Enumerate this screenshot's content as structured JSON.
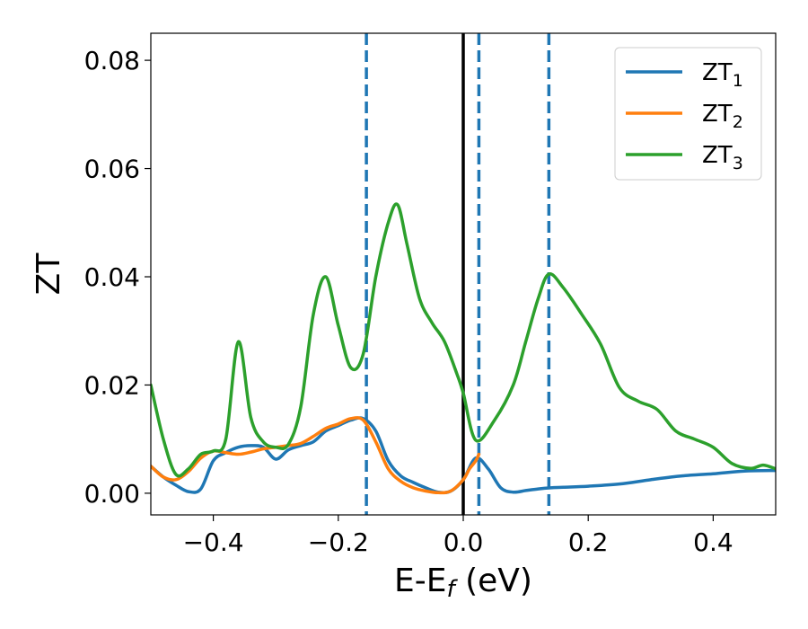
{
  "chart_data": {
    "type": "line",
    "xlabel": "E-E",
    "xlabel_sub": "f",
    "xlabel_unit": " (eV)",
    "ylabel": "ZT",
    "xlim": [
      -0.5,
      0.5
    ],
    "ylim": [
      -0.004,
      0.085
    ],
    "xticks": [
      -0.4,
      -0.2,
      0.0,
      0.2,
      0.4
    ],
    "xtick_labels": [
      "−0.4",
      "−0.2",
      "0.0",
      "0.2",
      "0.4"
    ],
    "yticks": [
      0.0,
      0.02,
      0.04,
      0.06,
      0.08
    ],
    "ytick_labels": [
      "0.00",
      "0.02",
      "0.04",
      "0.06",
      "0.08"
    ],
    "grid": false,
    "legend_position": "top-right",
    "vlines": [
      {
        "x": 0.0,
        "style": "solid",
        "color": "#000000"
      },
      {
        "x": -0.155,
        "style": "dashed",
        "color": "#1f77b4"
      },
      {
        "x": 0.025,
        "style": "dashed",
        "color": "#1f77b4"
      },
      {
        "x": 0.137,
        "style": "dashed",
        "color": "#1f77b4"
      }
    ],
    "series": [
      {
        "name": "ZT",
        "name_sub": "1",
        "color": "#1f77b4",
        "x": [
          -0.5,
          -0.48,
          -0.46,
          -0.44,
          -0.42,
          -0.4,
          -0.38,
          -0.36,
          -0.34,
          -0.32,
          -0.3,
          -0.28,
          -0.26,
          -0.24,
          -0.22,
          -0.2,
          -0.18,
          -0.16,
          -0.14,
          -0.12,
          -0.1,
          -0.08,
          -0.06,
          -0.04,
          -0.02,
          0.0,
          0.02,
          0.04,
          0.06,
          0.08,
          0.1,
          0.12,
          0.14,
          0.16,
          0.2,
          0.25,
          0.3,
          0.35,
          0.4,
          0.45,
          0.5
        ],
        "y": [
          0.005,
          0.003,
          0.0015,
          0.0003,
          0.0008,
          0.006,
          0.0075,
          0.0085,
          0.0088,
          0.0085,
          0.0063,
          0.008,
          0.0088,
          0.0095,
          0.0115,
          0.0125,
          0.0135,
          0.0138,
          0.0115,
          0.006,
          0.0032,
          0.002,
          0.001,
          0.0002,
          0.0004,
          0.0025,
          0.0065,
          0.0045,
          0.001,
          0.0002,
          0.0005,
          0.0008,
          0.001,
          0.0011,
          0.0013,
          0.0017,
          0.0025,
          0.0032,
          0.0036,
          0.0041,
          0.0042
        ]
      },
      {
        "name": "ZT",
        "name_sub": "2",
        "color": "#ff7f0e",
        "x": [
          -0.5,
          -0.48,
          -0.46,
          -0.44,
          -0.42,
          -0.4,
          -0.38,
          -0.36,
          -0.34,
          -0.32,
          -0.3,
          -0.28,
          -0.26,
          -0.24,
          -0.22,
          -0.2,
          -0.18,
          -0.16,
          -0.14,
          -0.12,
          -0.1,
          -0.08,
          -0.06,
          -0.04,
          -0.02,
          0.0,
          0.01,
          0.02,
          0.025
        ],
        "y": [
          0.005,
          0.003,
          0.0025,
          0.004,
          0.0065,
          0.0078,
          0.0075,
          0.0072,
          0.0076,
          0.0082,
          0.0085,
          0.0088,
          0.0092,
          0.0105,
          0.012,
          0.0128,
          0.0138,
          0.0135,
          0.0095,
          0.0045,
          0.0022,
          0.001,
          0.0004,
          0.0001,
          0.0004,
          0.0025,
          0.0045,
          0.006,
          0.0072
        ]
      },
      {
        "name": "ZT",
        "name_sub": "3",
        "color": "#2ca02c",
        "x": [
          -0.5,
          -0.48,
          -0.46,
          -0.44,
          -0.42,
          -0.4,
          -0.38,
          -0.36,
          -0.34,
          -0.32,
          -0.3,
          -0.28,
          -0.26,
          -0.24,
          -0.22,
          -0.2,
          -0.18,
          -0.16,
          -0.14,
          -0.12,
          -0.105,
          -0.09,
          -0.07,
          -0.05,
          -0.03,
          -0.01,
          0.0,
          0.02,
          0.05,
          0.08,
          0.1,
          0.12,
          0.137,
          0.16,
          0.19,
          0.22,
          0.25,
          0.28,
          0.31,
          0.34,
          0.37,
          0.4,
          0.43,
          0.46,
          0.48,
          0.5
        ],
        "y": [
          0.02,
          0.01,
          0.0035,
          0.0045,
          0.0072,
          0.0078,
          0.01,
          0.028,
          0.014,
          0.0095,
          0.0085,
          0.009,
          0.016,
          0.033,
          0.04,
          0.031,
          0.0232,
          0.0258,
          0.04,
          0.05,
          0.0533,
          0.046,
          0.036,
          0.0315,
          0.028,
          0.022,
          0.0185,
          0.0098,
          0.0135,
          0.02,
          0.028,
          0.036,
          0.0405,
          0.038,
          0.033,
          0.0275,
          0.0195,
          0.017,
          0.0155,
          0.0115,
          0.01,
          0.0085,
          0.0055,
          0.0046,
          0.0052,
          0.0045
        ]
      }
    ]
  }
}
